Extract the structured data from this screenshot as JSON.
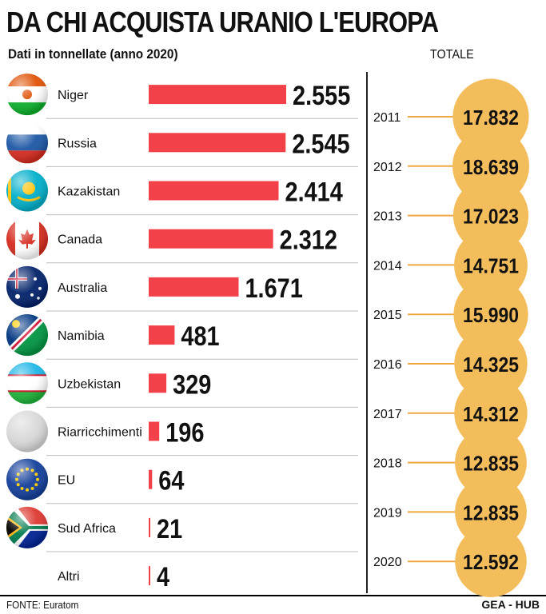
{
  "title": "DA CHI ACQUISTA URANIO L'EUROPA",
  "subtitle": "Dati in tonnellate (anno 2020)",
  "totale_label": "TOTALE",
  "source": "FONTE: Euratom",
  "credit": "GEA - HUB",
  "colors": {
    "bar": "#f24149",
    "bubble": "#f3bd5c",
    "divider": "#222222",
    "row_line": "#bdbdbd",
    "connector": "#efa843"
  },
  "chart_data": [
    {
      "type": "bar",
      "orientation": "horizontal",
      "categories": [
        "Niger",
        "Russia",
        "Kazakistan",
        "Canada",
        "Australia",
        "Namibia",
        "Uzbekistan",
        "Riarricchimenti",
        "EU",
        "Sud Africa",
        "Altri"
      ],
      "values": [
        2555,
        2545,
        2414,
        2312,
        1671,
        481,
        329,
        196,
        64,
        21,
        4
      ],
      "value_labels": [
        "2.555",
        "2.545",
        "2.414",
        "2.312",
        "1.671",
        "481",
        "329",
        "196",
        "64",
        "21",
        "4"
      ],
      "flag_icons": [
        "niger-flag-icon",
        "russia-flag-icon",
        "kazakhstan-flag-icon",
        "canada-flag-icon",
        "australia-flag-icon",
        "namibia-flag-icon",
        "uzbekistan-flag-icon",
        "blank-circle-icon",
        "eu-flag-icon",
        "south-africa-flag-icon",
        null
      ],
      "xlim": [
        0,
        2555
      ],
      "grid": false
    },
    {
      "type": "bubble",
      "x": [
        "2011",
        "2012",
        "2013",
        "2014",
        "2015",
        "2016",
        "2017",
        "2018",
        "2019",
        "2020"
      ],
      "values": [
        17832,
        18639,
        17023,
        14751,
        15990,
        14325,
        14312,
        12835,
        12835,
        12592
      ],
      "value_labels": [
        "17.832",
        "18.639",
        "17.023",
        "14.751",
        "15.990",
        "14.325",
        "14.312",
        "12.835",
        "12.835",
        "12.592"
      ]
    }
  ]
}
